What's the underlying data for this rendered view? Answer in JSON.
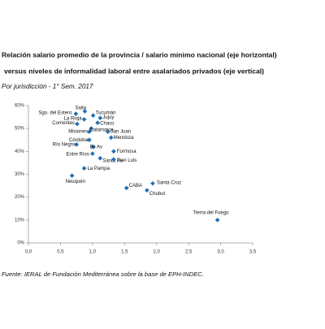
{
  "chart_data": {
    "type": "scatter",
    "title": [
      "Relación salario promedio de la provincia / salario mínimo nacional (eje horizontal)",
      "versus niveles de informalidad laboral entre asalariados privados (eje vertical)"
    ],
    "subtitle": "Por jurisdicción - 1° Sem. 2017",
    "note": "Fuente: IERAL de Fundación Mediterránea sobre la base de EPH-INDEC.",
    "color": "#1f6fb4",
    "labels": [
      "Salta",
      "Sgo. del Estero",
      "Tucumán",
      "Jujuy",
      "La Rioja",
      "Chaco",
      "Corrientes",
      "Catamarca",
      "Misiones",
      "San Juan",
      "Córdoba",
      "Mendoza",
      "Río Negro",
      "Bs As",
      "Formosa",
      "Entre Ríos",
      "Santa Fe",
      "San Luis",
      "La Pampa",
      "Neuquén",
      "CABA",
      "Santa Cruz",
      "Chubut",
      "Tierra del Fuego"
    ],
    "x": [
      0.88,
      0.74,
      1.01,
      1.12,
      0.87,
      1.08,
      0.76,
      0.98,
      0.95,
      1.24,
      0.95,
      1.29,
      0.75,
      1.01,
      1.33,
      1.0,
      1.12,
      1.33,
      0.87,
      0.68,
      1.53,
      1.94,
      1.85,
      2.95
    ],
    "values": [
      57.5,
      56.4,
      55.7,
      54.6,
      54,
      52.5,
      52,
      50,
      48.6,
      48.6,
      45,
      46,
      43,
      42,
      40,
      39,
      37,
      36.5,
      32.6,
      29.4,
      24,
      26,
      23,
      10
    ],
    "xlim": [
      0,
      3.5
    ],
    "xticks": [
      {
        "value": 0,
        "label": "0,0"
      },
      {
        "value": 0.5,
        "label": "0,5"
      },
      {
        "value": 1,
        "label": "1,0"
      },
      {
        "value": 1.5,
        "label": "1,5"
      },
      {
        "value": 2,
        "label": "2,0"
      },
      {
        "value": 2.5,
        "label": "2,5"
      },
      {
        "value": 3,
        "label": "3,0"
      },
      {
        "value": 3.5,
        "label": "3,5"
      }
    ],
    "ylim": [
      0,
      60
    ],
    "yticks": [
      {
        "value": 0,
        "label": "0%"
      },
      {
        "value": 10,
        "label": "10%"
      },
      {
        "value": 20,
        "label": "20%"
      },
      {
        "value": 30,
        "label": "30%"
      },
      {
        "value": 40,
        "label": "40%"
      },
      {
        "value": 50,
        "label": "50%"
      },
      {
        "value": 60,
        "label": "60%"
      }
    ]
  }
}
